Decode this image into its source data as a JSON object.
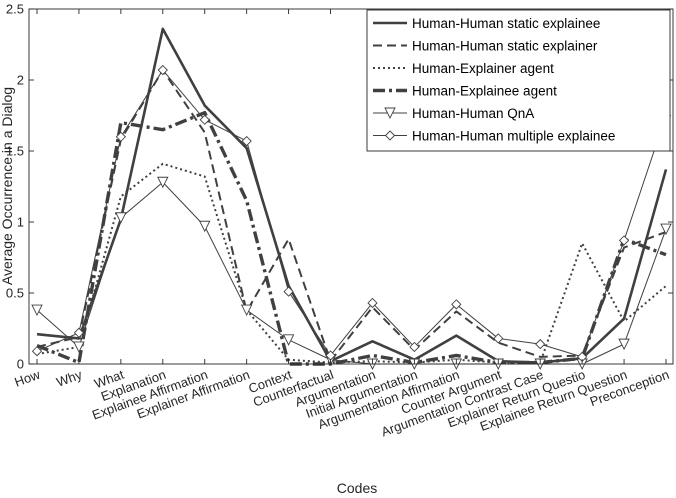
{
  "chart_data": {
    "type": "line",
    "xlabel": "Codes",
    "ylabel": "Average Occurrence in a Dialog",
    "ylim": [
      0,
      2.5
    ],
    "yticks": [
      0,
      0.5,
      1,
      1.5,
      2,
      2.5
    ],
    "ytick_labels": [
      "0",
      "0.5",
      "1",
      "1.5",
      "2",
      "2.5"
    ],
    "grid": false,
    "legend_position": "top-right",
    "categories": [
      "How",
      "Why",
      "What",
      "Explanation",
      "Explainee Affirmation",
      "Explainer Affirmation",
      "Context",
      "Counterfactual",
      "Argumentation",
      "Initial Argumentation",
      "Argumentation Affirmation",
      "Counter Argument",
      "Argumentation Contrast Case",
      "Explainer Return Questio",
      "Explainee Return Question",
      "Preconception"
    ],
    "series": [
      {
        "name": "Human-Human static explainee",
        "style": "solid-thick",
        "marker": "none",
        "color": "#404040",
        "values": [
          0.21,
          0.18,
          1.02,
          2.36,
          1.82,
          1.52,
          0.55,
          0.02,
          0.16,
          0.03,
          0.2,
          0.02,
          0.01,
          0.04,
          0.32,
          1.37
        ]
      },
      {
        "name": "Human-Human static explainer",
        "style": "dashed",
        "marker": "none",
        "color": "#404040",
        "values": [
          0.12,
          0.19,
          1.58,
          2.07,
          1.63,
          0.37,
          0.88,
          0.02,
          0.4,
          0.1,
          0.37,
          0.15,
          0.05,
          0.06,
          0.82,
          0.93
        ]
      },
      {
        "name": "Human-Explainer agent",
        "style": "dotted",
        "marker": "none",
        "color": "#404040",
        "values": [
          0.07,
          0.12,
          1.18,
          1.41,
          1.32,
          0.38,
          0.03,
          0.01,
          0.02,
          0.01,
          0.03,
          0.01,
          0.01,
          0.85,
          0.3,
          0.55
        ]
      },
      {
        "name": "Human-Explainee agent",
        "style": "dashdot-thick",
        "marker": "none",
        "color": "#404040",
        "values": [
          0.13,
          0.01,
          1.7,
          1.65,
          1.77,
          1.15,
          0.0,
          0.0,
          0.06,
          0.01,
          0.06,
          0.01,
          0.01,
          0.04,
          0.88,
          0.77
        ]
      },
      {
        "name": "Human-Human QnA",
        "style": "solid-thin",
        "marker": "triangle-down",
        "color": "#404040",
        "values": [
          0.38,
          0.12,
          1.03,
          1.28,
          0.97,
          0.38,
          0.17,
          0.03,
          0.0,
          0.0,
          0.0,
          0.0,
          0.0,
          0.0,
          0.14,
          0.95
        ]
      },
      {
        "name": "Human-Human multiple explainee",
        "style": "solid-thin",
        "marker": "diamond",
        "color": "#404040",
        "values": [
          0.09,
          0.22,
          1.6,
          2.07,
          1.72,
          1.57,
          0.51,
          0.06,
          0.43,
          0.12,
          0.42,
          0.18,
          0.14,
          0.05,
          0.87,
          1.75
        ]
      }
    ]
  }
}
